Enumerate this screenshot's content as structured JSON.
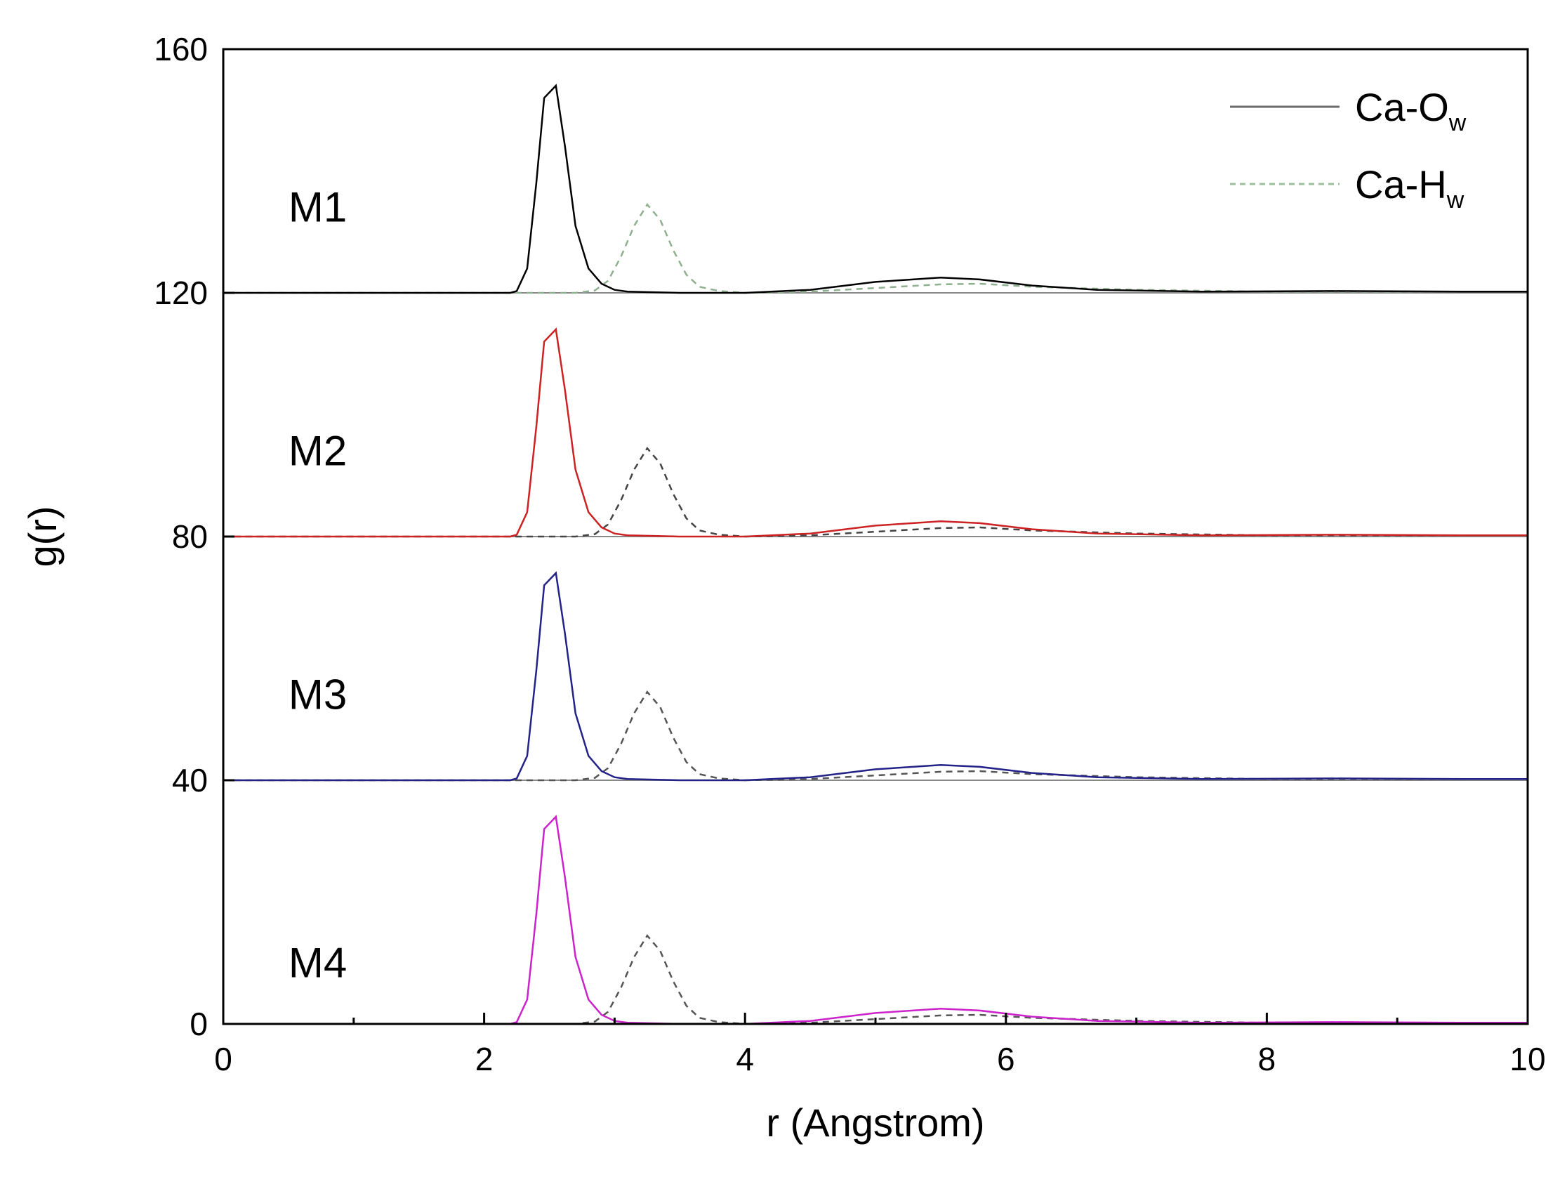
{
  "chart_data": {
    "type": "line",
    "xlabel": "r (Angstrom)",
    "ylabel": "g(r)",
    "xlim": [
      0,
      10
    ],
    "ylim": [
      0,
      160
    ],
    "grid": false,
    "x_ticks": [
      0,
      2,
      4,
      6,
      8,
      10
    ],
    "x_tick_labels": [
      "0",
      "2",
      "4",
      "6",
      "8",
      "10"
    ],
    "y_ticks": [
      0,
      40,
      80,
      120,
      160
    ],
    "y_tick_labels": [
      "0",
      "40",
      "80",
      "120",
      "160"
    ],
    "legend": {
      "position": "top-right",
      "entries": [
        {
          "label": "Ca-O",
          "subscript": "w",
          "style": "solid",
          "color": "#6b6b6b"
        },
        {
          "label": "Ca-H",
          "subscript": "w",
          "style": "dashed",
          "color": "#9cbf9c"
        }
      ]
    },
    "panels": [
      {
        "label": "M1",
        "label_at": [
          0.5,
          134
        ],
        "offset": 120,
        "color_ow": "#000000",
        "color_hw": "#8fb08f",
        "ca_ow": [
          [
            0,
            0
          ],
          [
            2.2,
            0
          ],
          [
            2.25,
            0.3
          ],
          [
            2.33,
            4
          ],
          [
            2.4,
            18
          ],
          [
            2.46,
            32
          ],
          [
            2.55,
            34
          ],
          [
            2.62,
            24
          ],
          [
            2.7,
            11
          ],
          [
            2.8,
            4
          ],
          [
            2.9,
            1.5
          ],
          [
            3.0,
            0.5
          ],
          [
            3.1,
            0.2
          ],
          [
            3.5,
            0
          ],
          [
            4.0,
            0
          ],
          [
            4.5,
            0.5
          ],
          [
            5.0,
            1.8
          ],
          [
            5.5,
            2.5
          ],
          [
            5.8,
            2.2
          ],
          [
            6.2,
            1.2
          ],
          [
            6.7,
            0.5
          ],
          [
            7.5,
            0.2
          ],
          [
            8.5,
            0.3
          ],
          [
            9.5,
            0.2
          ],
          [
            10,
            0.2
          ]
        ],
        "ca_hw": [
          [
            0,
            0
          ],
          [
            2.7,
            0
          ],
          [
            2.85,
            0.4
          ],
          [
            2.95,
            2
          ],
          [
            3.05,
            6
          ],
          [
            3.15,
            11
          ],
          [
            3.25,
            14.5
          ],
          [
            3.35,
            12
          ],
          [
            3.45,
            7
          ],
          [
            3.55,
            3
          ],
          [
            3.65,
            1
          ],
          [
            3.8,
            0.3
          ],
          [
            4.0,
            0
          ],
          [
            4.5,
            0.2
          ],
          [
            5.0,
            0.8
          ],
          [
            5.5,
            1.4
          ],
          [
            5.8,
            1.5
          ],
          [
            6.2,
            1.0
          ],
          [
            7.0,
            0.5
          ],
          [
            8.0,
            0.2
          ],
          [
            10,
            0.2
          ]
        ]
      },
      {
        "label": "M2",
        "label_at": [
          0.5,
          94
        ],
        "offset": 80,
        "color_ow": "#cc2222",
        "color_hw": "#444444",
        "ca_ow": [
          [
            0,
            0
          ],
          [
            2.2,
            0
          ],
          [
            2.25,
            0.3
          ],
          [
            2.33,
            4
          ],
          [
            2.4,
            18
          ],
          [
            2.46,
            32
          ],
          [
            2.55,
            34
          ],
          [
            2.62,
            24
          ],
          [
            2.7,
            11
          ],
          [
            2.8,
            4
          ],
          [
            2.9,
            1.5
          ],
          [
            3.0,
            0.5
          ],
          [
            3.1,
            0.2
          ],
          [
            3.5,
            0
          ],
          [
            4.0,
            0
          ],
          [
            4.5,
            0.5
          ],
          [
            5.0,
            1.8
          ],
          [
            5.5,
            2.5
          ],
          [
            5.8,
            2.2
          ],
          [
            6.2,
            1.2
          ],
          [
            6.7,
            0.5
          ],
          [
            7.5,
            0.2
          ],
          [
            8.5,
            0.3
          ],
          [
            9.5,
            0.2
          ],
          [
            10,
            0.2
          ]
        ],
        "ca_hw": [
          [
            0,
            0
          ],
          [
            2.7,
            0
          ],
          [
            2.85,
            0.4
          ],
          [
            2.95,
            2
          ],
          [
            3.05,
            6
          ],
          [
            3.15,
            11
          ],
          [
            3.25,
            14.5
          ],
          [
            3.35,
            12
          ],
          [
            3.45,
            7
          ],
          [
            3.55,
            3
          ],
          [
            3.65,
            1
          ],
          [
            3.8,
            0.3
          ],
          [
            4.0,
            0
          ],
          [
            4.5,
            0.2
          ],
          [
            5.0,
            0.8
          ],
          [
            5.5,
            1.4
          ],
          [
            5.8,
            1.5
          ],
          [
            6.2,
            1.0
          ],
          [
            7.0,
            0.5
          ],
          [
            8.0,
            0.2
          ],
          [
            10,
            0.2
          ]
        ]
      },
      {
        "label": "M3",
        "label_at": [
          0.5,
          54
        ],
        "offset": 40,
        "color_ow": "#222288",
        "color_hw": "#555555",
        "ca_ow": [
          [
            0,
            0
          ],
          [
            2.2,
            0
          ],
          [
            2.25,
            0.3
          ],
          [
            2.33,
            4
          ],
          [
            2.4,
            18
          ],
          [
            2.46,
            32
          ],
          [
            2.55,
            34
          ],
          [
            2.62,
            24
          ],
          [
            2.7,
            11
          ],
          [
            2.8,
            4
          ],
          [
            2.9,
            1.5
          ],
          [
            3.0,
            0.5
          ],
          [
            3.1,
            0.2
          ],
          [
            3.5,
            0
          ],
          [
            4.0,
            0
          ],
          [
            4.5,
            0.5
          ],
          [
            5.0,
            1.8
          ],
          [
            5.5,
            2.5
          ],
          [
            5.8,
            2.2
          ],
          [
            6.2,
            1.2
          ],
          [
            6.7,
            0.5
          ],
          [
            7.5,
            0.2
          ],
          [
            8.5,
            0.3
          ],
          [
            9.5,
            0.2
          ],
          [
            10,
            0.2
          ]
        ],
        "ca_hw": [
          [
            0,
            0
          ],
          [
            2.7,
            0
          ],
          [
            2.85,
            0.4
          ],
          [
            2.95,
            2
          ],
          [
            3.05,
            6
          ],
          [
            3.15,
            11
          ],
          [
            3.25,
            14.5
          ],
          [
            3.35,
            12
          ],
          [
            3.45,
            7
          ],
          [
            3.55,
            3
          ],
          [
            3.65,
            1
          ],
          [
            3.8,
            0.3
          ],
          [
            4.0,
            0
          ],
          [
            4.5,
            0.2
          ],
          [
            5.0,
            0.8
          ],
          [
            5.5,
            1.4
          ],
          [
            5.8,
            1.5
          ],
          [
            6.2,
            1.0
          ],
          [
            7.0,
            0.5
          ],
          [
            8.0,
            0.2
          ],
          [
            10,
            0.2
          ]
        ]
      },
      {
        "label": "M4",
        "label_at": [
          0.5,
          10
        ],
        "offset": 0,
        "color_ow": "#cc22cc",
        "color_hw": "#555555",
        "ca_ow": [
          [
            0,
            0
          ],
          [
            2.2,
            0
          ],
          [
            2.25,
            0.3
          ],
          [
            2.33,
            4
          ],
          [
            2.4,
            18
          ],
          [
            2.46,
            32
          ],
          [
            2.55,
            34
          ],
          [
            2.62,
            24
          ],
          [
            2.7,
            11
          ],
          [
            2.8,
            4
          ],
          [
            2.9,
            1.5
          ],
          [
            3.0,
            0.5
          ],
          [
            3.1,
            0.2
          ],
          [
            3.5,
            0
          ],
          [
            4.0,
            0
          ],
          [
            4.5,
            0.5
          ],
          [
            5.0,
            1.8
          ],
          [
            5.5,
            2.5
          ],
          [
            5.8,
            2.2
          ],
          [
            6.2,
            1.2
          ],
          [
            6.7,
            0.5
          ],
          [
            7.5,
            0.2
          ],
          [
            8.5,
            0.3
          ],
          [
            9.5,
            0.2
          ],
          [
            10,
            0.2
          ]
        ],
        "ca_hw": [
          [
            0,
            0
          ],
          [
            2.7,
            0
          ],
          [
            2.85,
            0.4
          ],
          [
            2.95,
            2
          ],
          [
            3.05,
            6
          ],
          [
            3.15,
            11
          ],
          [
            3.25,
            14.5
          ],
          [
            3.35,
            12
          ],
          [
            3.45,
            7
          ],
          [
            3.55,
            3
          ],
          [
            3.65,
            1
          ],
          [
            3.8,
            0.3
          ],
          [
            4.0,
            0
          ],
          [
            4.5,
            0.2
          ],
          [
            5.0,
            0.8
          ],
          [
            5.5,
            1.4
          ],
          [
            5.8,
            1.5
          ],
          [
            6.2,
            1.0
          ],
          [
            7.0,
            0.5
          ],
          [
            8.0,
            0.2
          ],
          [
            10,
            0.2
          ]
        ]
      }
    ]
  }
}
